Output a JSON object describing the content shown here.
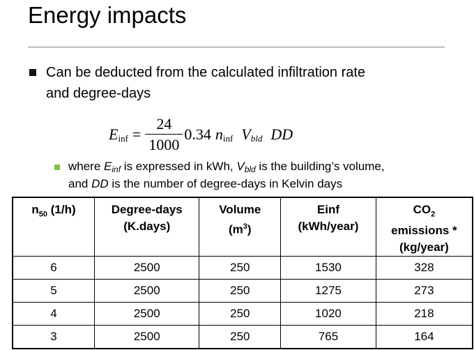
{
  "slide": {
    "title": "Energy impacts",
    "bullet": {
      "line1": "Can be deducted from the calculated infiltration rate",
      "line2": "and degree-days"
    },
    "formula": {
      "lhs": "E",
      "lhs_sub": "inf",
      "equals": "=",
      "numerator": "24",
      "denominator": "1000",
      "coefficient": "0.34",
      "n": "n",
      "n_sub": "inf",
      "v": "V",
      "v_sub": "bld",
      "dd": "DD"
    },
    "sub_bullet": {
      "p1": "where ",
      "e": "E",
      "e_sub": "inf",
      "p2": " is expressed in kWh, ",
      "v": "V",
      "v_sub": "bld",
      "p3": " is the building’s volume,",
      "p4": "and ",
      "dd": "DD",
      "p5": " is the number of degree-days in Kelvin days"
    }
  },
  "table": {
    "headers": {
      "n50_main": "n",
      "n50_sub": "50",
      "n50_unit": " (1/h)",
      "dd_line1": "Degree-days",
      "dd_line2": "(K.days)",
      "vol_line1": "Volume",
      "vol_line2_pre": "(m",
      "vol_line2_sup": "3",
      "vol_line2_post": ")",
      "einf_line1": "Einf",
      "einf_line2": "(kWh/year)",
      "co2_main": "CO",
      "co2_sub": "2",
      "co2_line2": "emissions *",
      "co2_line3": "(kg/year)"
    },
    "rows": [
      {
        "n50": "6",
        "dd": "2500",
        "volume": "250",
        "einf": "1530",
        "co2": "328"
      },
      {
        "n50": "5",
        "dd": "2500",
        "volume": "250",
        "einf": "1275",
        "co2": "273"
      },
      {
        "n50": "4",
        "dd": "2500",
        "volume": "250",
        "einf": "1020",
        "co2": "218"
      },
      {
        "n50": "3",
        "dd": "2500",
        "volume": "250",
        "einf": "765",
        "co2": "164"
      }
    ]
  }
}
